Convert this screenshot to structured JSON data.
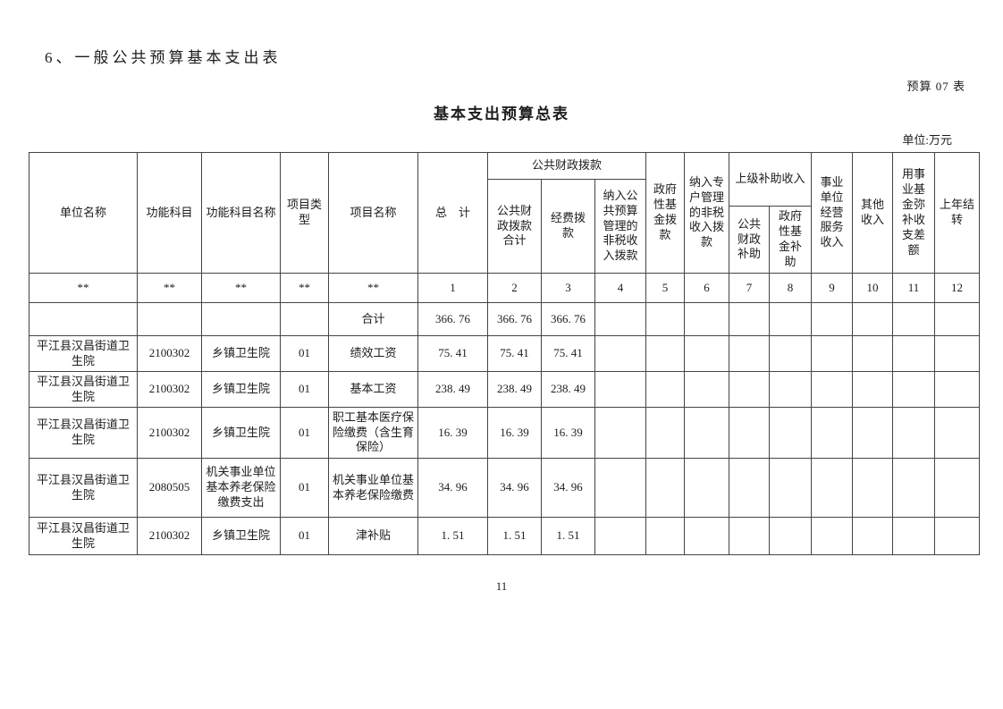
{
  "page": {
    "section_title": "6、一般公共预算基本支出表",
    "table_code": "预算 07 表",
    "table_title": "基本支出预算总表",
    "unit_label": "单位:万元",
    "page_number": "11"
  },
  "table": {
    "header": {
      "unit_name": "单位名称",
      "func_code": "功能科目",
      "func_name": "功能科目名称",
      "proj_type": "项目类型",
      "proj_name": "项目名称",
      "total": "总　计",
      "public_finance_group": "公共财政拨款",
      "public_finance_total": "公共财政拨款合计",
      "expense_allocation": "经费拨款",
      "nontax_into_budget": "纳入公共预算管理的非税收入拨款",
      "gov_fund_allocation": "政府性基金拨款",
      "special_account_nontax": "纳入专户管理的非税收入拨款",
      "higher_subsidy_group": "上级补助收入",
      "public_finance_subsidy": "公共财政补助",
      "gov_fund_subsidy": "政府性基金补助",
      "operating_service_income": "事业单位经营服务收入",
      "other_income": "其他收入",
      "fund_deficit_cover": "用事业基金弥补收支差额",
      "prev_year_carryover": "上年结转"
    },
    "col_numbers": [
      "**",
      "**",
      "**",
      "**",
      "**",
      "1",
      "2",
      "3",
      "4",
      "5",
      "6",
      "7",
      "8",
      "9",
      "10",
      "11",
      "12"
    ],
    "rows": [
      [
        "",
        "",
        "",
        "",
        "合计",
        "366. 76",
        "366. 76",
        "366. 76",
        "",
        "",
        "",
        "",
        "",
        "",
        "",
        "",
        ""
      ],
      [
        "平江县汉昌街道卫生院",
        "2100302",
        "乡镇卫生院",
        "01",
        "绩效工资",
        "75. 41",
        "75. 41",
        "75. 41",
        "",
        "",
        "",
        "",
        "",
        "",
        "",
        "",
        ""
      ],
      [
        "平江县汉昌街道卫生院",
        "2100302",
        "乡镇卫生院",
        "01",
        "基本工资",
        "238. 49",
        "238. 49",
        "238. 49",
        "",
        "",
        "",
        "",
        "",
        "",
        "",
        "",
        ""
      ],
      [
        "平江县汉昌街道卫生院",
        "2100302",
        "乡镇卫生院",
        "01",
        "职工基本医疗保险缴费（含生育保险）",
        "16. 39",
        "16. 39",
        "16. 39",
        "",
        "",
        "",
        "",
        "",
        "",
        "",
        "",
        ""
      ],
      [
        "平江县汉昌街道卫生院",
        "2080505",
        "机关事业单位基本养老保险缴费支出",
        "01",
        "机关事业单位基本养老保险缴费",
        "34. 96",
        "34. 96",
        "34. 96",
        "",
        "",
        "",
        "",
        "",
        "",
        "",
        "",
        ""
      ],
      [
        "平江县汉昌街道卫生院",
        "2100302",
        "乡镇卫生院",
        "01",
        "津补贴",
        "1. 51",
        "1. 51",
        "1. 51",
        "",
        "",
        "",
        "",
        "",
        "",
        "",
        "",
        ""
      ]
    ]
  }
}
